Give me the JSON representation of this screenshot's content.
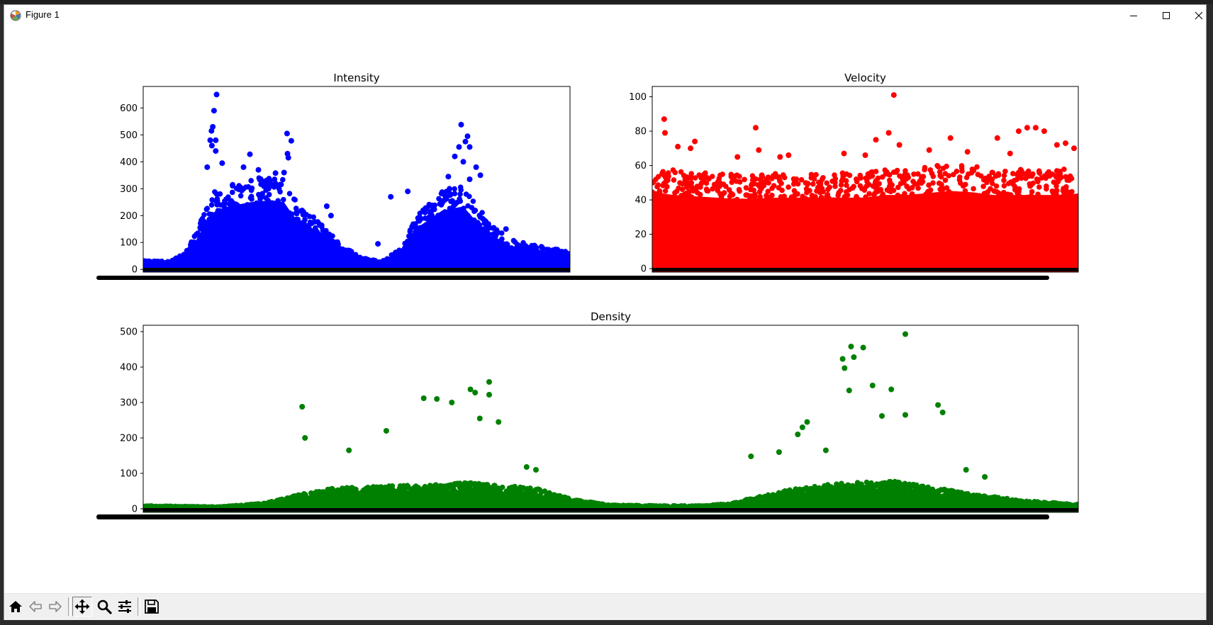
{
  "window": {
    "title": "Figure 1",
    "controls": [
      "minimize-icon",
      "maximize-icon",
      "close-icon"
    ]
  },
  "toolbar": {
    "buttons": [
      "home-icon",
      "back-icon",
      "forward-icon",
      "pan-icon",
      "zoom-icon",
      "configure-subplots-icon",
      "save-icon"
    ]
  },
  "chart_data": [
    {
      "type": "scatter",
      "title": "Intensity",
      "color": "#0000ff",
      "ylim": [
        -10,
        680
      ],
      "yticks": [
        0,
        100,
        200,
        300,
        400,
        500,
        600
      ],
      "grid": false,
      "envelope": {
        "x": [
          0,
          0.03,
          0.06,
          0.1,
          0.13,
          0.15,
          0.17,
          0.2,
          0.25,
          0.3,
          0.33,
          0.35,
          0.37,
          0.4,
          0.45,
          0.5,
          0.53,
          0.56,
          0.6,
          0.65,
          0.7,
          0.75,
          0.78,
          0.82,
          0.86,
          0.9,
          0.95,
          1.0
        ],
        "y": [
          40,
          30,
          28,
          60,
          160,
          240,
          280,
          300,
          320,
          330,
          320,
          260,
          220,
          190,
          110,
          50,
          35,
          30,
          70,
          210,
          280,
          300,
          230,
          150,
          110,
          90,
          80,
          60
        ]
      },
      "outliers": [
        {
          "x": 0.172,
          "y": 650
        },
        {
          "x": 0.166,
          "y": 590
        },
        {
          "x": 0.163,
          "y": 530
        },
        {
          "x": 0.16,
          "y": 515
        },
        {
          "x": 0.157,
          "y": 480
        },
        {
          "x": 0.161,
          "y": 460
        },
        {
          "x": 0.17,
          "y": 480
        },
        {
          "x": 0.17,
          "y": 440
        },
        {
          "x": 0.15,
          "y": 380
        },
        {
          "x": 0.185,
          "y": 395
        },
        {
          "x": 0.25,
          "y": 428
        },
        {
          "x": 0.235,
          "y": 380
        },
        {
          "x": 0.27,
          "y": 370
        },
        {
          "x": 0.33,
          "y": 360
        },
        {
          "x": 0.31,
          "y": 358
        },
        {
          "x": 0.337,
          "y": 505
        },
        {
          "x": 0.347,
          "y": 478
        },
        {
          "x": 0.338,
          "y": 430
        },
        {
          "x": 0.34,
          "y": 415
        },
        {
          "x": 0.745,
          "y": 538
        },
        {
          "x": 0.76,
          "y": 495
        },
        {
          "x": 0.755,
          "y": 475
        },
        {
          "x": 0.765,
          "y": 455
        },
        {
          "x": 0.74,
          "y": 455
        },
        {
          "x": 0.73,
          "y": 420
        },
        {
          "x": 0.75,
          "y": 400
        },
        {
          "x": 0.78,
          "y": 380
        },
        {
          "x": 0.715,
          "y": 345
        },
        {
          "x": 0.765,
          "y": 335
        },
        {
          "x": 0.79,
          "y": 350
        },
        {
          "x": 0.58,
          "y": 270
        },
        {
          "x": 0.62,
          "y": 290
        },
        {
          "x": 0.43,
          "y": 235
        },
        {
          "x": 0.44,
          "y": 200
        },
        {
          "x": 0.85,
          "y": 150
        },
        {
          "x": 0.55,
          "y": 95
        }
      ]
    },
    {
      "type": "scatter",
      "title": "Velocity",
      "color": "#ff0000",
      "ylim": [
        -2,
        106
      ],
      "yticks": [
        0,
        20,
        40,
        60,
        80,
        100
      ],
      "grid": false,
      "envelope": {
        "x": [
          0,
          0.05,
          0.1,
          0.15,
          0.2,
          0.3,
          0.4,
          0.5,
          0.55,
          0.6,
          0.7,
          0.75,
          0.8,
          0.85,
          0.9,
          0.95,
          1.0
        ],
        "y": [
          57,
          55,
          54,
          53,
          52,
          53,
          53,
          53,
          55,
          55,
          58,
          57,
          55,
          55,
          55,
          55,
          56
        ]
      },
      "outliers": [
        {
          "x": 0.567,
          "y": 101
        },
        {
          "x": 0.028,
          "y": 87
        },
        {
          "x": 0.03,
          "y": 79
        },
        {
          "x": 0.243,
          "y": 82
        },
        {
          "x": 0.555,
          "y": 79
        },
        {
          "x": 0.525,
          "y": 75
        },
        {
          "x": 0.86,
          "y": 80
        },
        {
          "x": 0.88,
          "y": 82
        },
        {
          "x": 0.9,
          "y": 82
        },
        {
          "x": 0.92,
          "y": 80
        },
        {
          "x": 0.7,
          "y": 76
        },
        {
          "x": 0.81,
          "y": 76
        },
        {
          "x": 0.1,
          "y": 74
        },
        {
          "x": 0.06,
          "y": 71
        },
        {
          "x": 0.09,
          "y": 70
        },
        {
          "x": 0.58,
          "y": 72
        },
        {
          "x": 0.65,
          "y": 69
        },
        {
          "x": 0.95,
          "y": 72
        },
        {
          "x": 0.97,
          "y": 73
        },
        {
          "x": 0.99,
          "y": 70
        },
        {
          "x": 0.45,
          "y": 67
        },
        {
          "x": 0.5,
          "y": 66
        },
        {
          "x": 0.3,
          "y": 65
        },
        {
          "x": 0.32,
          "y": 66
        },
        {
          "x": 0.2,
          "y": 65
        },
        {
          "x": 0.25,
          "y": 69
        },
        {
          "x": 0.74,
          "y": 68
        },
        {
          "x": 0.84,
          "y": 67
        }
      ]
    },
    {
      "type": "scatter",
      "title": "Density",
      "color": "#008000",
      "ylim": [
        -10,
        518
      ],
      "yticks": [
        0,
        100,
        200,
        300,
        400,
        500
      ],
      "grid": false,
      "envelope": {
        "x": [
          0,
          0.08,
          0.13,
          0.17,
          0.2,
          0.25,
          0.3,
          0.35,
          0.42,
          0.46,
          0.5,
          0.55,
          0.6,
          0.63,
          0.66,
          0.7,
          0.75,
          0.8,
          0.85,
          0.9,
          0.95,
          1.0
        ],
        "y": [
          8,
          5,
          15,
          40,
          55,
          60,
          65,
          70,
          55,
          25,
          10,
          8,
          8,
          15,
          35,
          55,
          70,
          75,
          55,
          35,
          20,
          12
        ]
      },
      "outliers": [
        {
          "x": 0.815,
          "y": 493
        },
        {
          "x": 0.757,
          "y": 458
        },
        {
          "x": 0.748,
          "y": 423
        },
        {
          "x": 0.76,
          "y": 428
        },
        {
          "x": 0.75,
          "y": 397
        },
        {
          "x": 0.77,
          "y": 455
        },
        {
          "x": 0.755,
          "y": 334
        },
        {
          "x": 0.78,
          "y": 348
        },
        {
          "x": 0.8,
          "y": 337
        },
        {
          "x": 0.85,
          "y": 293
        },
        {
          "x": 0.855,
          "y": 272
        },
        {
          "x": 0.37,
          "y": 358
        },
        {
          "x": 0.35,
          "y": 337
        },
        {
          "x": 0.355,
          "y": 328
        },
        {
          "x": 0.37,
          "y": 322
        },
        {
          "x": 0.3,
          "y": 312
        },
        {
          "x": 0.314,
          "y": 310
        },
        {
          "x": 0.33,
          "y": 300
        },
        {
          "x": 0.17,
          "y": 288
        },
        {
          "x": 0.173,
          "y": 200
        },
        {
          "x": 0.26,
          "y": 220
        },
        {
          "x": 0.36,
          "y": 255
        },
        {
          "x": 0.38,
          "y": 245
        },
        {
          "x": 0.71,
          "y": 245
        },
        {
          "x": 0.705,
          "y": 230
        },
        {
          "x": 0.7,
          "y": 210
        },
        {
          "x": 0.815,
          "y": 265
        },
        {
          "x": 0.79,
          "y": 262
        },
        {
          "x": 0.73,
          "y": 165
        },
        {
          "x": 0.68,
          "y": 160
        },
        {
          "x": 0.88,
          "y": 110
        },
        {
          "x": 0.9,
          "y": 90
        },
        {
          "x": 0.41,
          "y": 118
        },
        {
          "x": 0.42,
          "y": 110
        },
        {
          "x": 0.22,
          "y": 165
        },
        {
          "x": 0.65,
          "y": 148
        }
      ]
    }
  ]
}
